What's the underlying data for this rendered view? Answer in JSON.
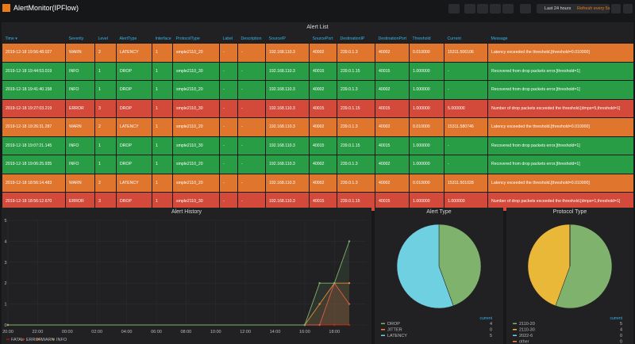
{
  "header": {
    "title": "AlertMonitor(IPFlow)",
    "time_range": "Last 24 hours",
    "refresh": "Refresh every 5s"
  },
  "table": {
    "title": "Alert List",
    "columns": [
      "Time ▾",
      "Severity",
      "Level",
      "AlertType",
      "Interface",
      "ProtocolType",
      "Label",
      "Description",
      "SourceIP",
      "SourcePort",
      "DestinationIP",
      "DestinationPort",
      "Threshold",
      "Current",
      "Message"
    ],
    "severity_colors": {
      "WARN": "#e0752d",
      "INFO": "#299c46",
      "ERROR": "#d44a3a"
    },
    "rows": [
      [
        "2019-12-18 19:56:48.027",
        "WARN",
        "2",
        "LATENCY",
        "1",
        "smple2110_20",
        "-",
        "-",
        "192.168.110.3",
        "40002",
        "239.0.1.3",
        "40002",
        "0.010000",
        "15311.506106",
        "Latency exceeded the threshold.[threshold=0.010000]"
      ],
      [
        "2019-12-18 19:44:53.019",
        "INFO",
        "1",
        "DROP",
        "1",
        "smple2110_30",
        "-",
        "-",
        "192.168.110.3",
        "40015",
        "239.0.1.15",
        "40015",
        "1.000000",
        "-",
        "Recovered from drop packets error.[threshold=1]"
      ],
      [
        "2019-12-18 19:41:40.158",
        "INFO",
        "1",
        "DROP",
        "1",
        "smple2110_20",
        "-",
        "-",
        "192.168.110.3",
        "40002",
        "239.0.1.3",
        "40002",
        "1.000000",
        "-",
        "Recovered from drop packets error.[threshold=1]"
      ],
      [
        "2019-12-18 19:27:03.219",
        "ERROR",
        "3",
        "DROP",
        "1",
        "smple2110_30",
        "-",
        "-",
        "192.168.110.3",
        "40015",
        "239.0.1.15",
        "40015",
        "1.000000",
        "5.000000",
        "Number of drop packets exceeded the threshold.[dmps=5,threshold=1]"
      ],
      [
        "2019-12-18 19:26:31.287",
        "WARN",
        "2",
        "LATENCY",
        "1",
        "smple2110_20",
        "-",
        "-",
        "192.168.110.3",
        "40002",
        "239.0.1.3",
        "40002",
        "0.010000",
        "15311.580746",
        "Latency exceeded the threshold.[threshold=0.010000]"
      ],
      [
        "2019-12-18 19:07:21.145",
        "INFO",
        "1",
        "DROP",
        "1",
        "smple2110_30",
        "-",
        "-",
        "192.168.110.3",
        "40015",
        "239.0.1.15",
        "40015",
        "1.000000",
        "-",
        "Recovered from drop packets error.[threshold=1]"
      ],
      [
        "2019-12-18 19:06:25.935",
        "INFO",
        "1",
        "DROP",
        "1",
        "smple2110_20",
        "-",
        "-",
        "192.168.110.3",
        "40002",
        "239.0.1.3",
        "40002",
        "1.000000",
        "-",
        "Recovered from drop packets error.[threshold=1]"
      ],
      [
        "2019-12-18 18:56:14.483",
        "WARN",
        "2",
        "LATENCY",
        "1",
        "smple2110_20",
        "-",
        "-",
        "192.168.110.3",
        "40002",
        "239.0.1.3",
        "40002",
        "0.010000",
        "15311.501028",
        "Latency exceeded the threshold.[threshold=0.010000]"
      ],
      [
        "2019-12-18 18:56:12.670",
        "ERROR",
        "3",
        "DROP",
        "1",
        "smple2110_30",
        "-",
        "-",
        "192.168.110.3",
        "40015",
        "239.0.1.15",
        "40015",
        "1.000000",
        "1.000000",
        "Number of drop packets exceeded the threshold.[dmps=1,threshold=1]"
      ]
    ]
  },
  "chart_data": [
    {
      "type": "line",
      "title": "Alert History",
      "x": [
        0,
        20,
        21,
        22,
        23
      ],
      "xlim": [
        0,
        23
      ],
      "xticks": [
        {
          "value": 0,
          "label": "20:00"
        },
        {
          "value": 2,
          "label": "22:00"
        },
        {
          "value": 4,
          "label": "00:00"
        },
        {
          "value": 6,
          "label": "02:00"
        },
        {
          "value": 8,
          "label": "04:00"
        },
        {
          "value": 10,
          "label": "06:00"
        },
        {
          "value": 12,
          "label": "08:00"
        },
        {
          "value": 14,
          "label": "10:00"
        },
        {
          "value": 16,
          "label": "12:00"
        },
        {
          "value": 18,
          "label": "14:00"
        },
        {
          "value": 20,
          "label": "16:00"
        },
        {
          "value": 22,
          "label": "18:00"
        }
      ],
      "ylim": [
        0,
        5
      ],
      "yticks": [
        0,
        1,
        2,
        3,
        4,
        5
      ],
      "grid": true,
      "series": [
        {
          "name": "FATAL",
          "color": "#bf1b00",
          "values": [
            0,
            0,
            0,
            0,
            0
          ]
        },
        {
          "name": "ERROR",
          "color": "#e24d42",
          "values": [
            0,
            0,
            0,
            2,
            1
          ]
        },
        {
          "name": "WARN",
          "color": "#ef843c",
          "values": [
            0,
            0,
            1,
            2,
            2
          ]
        },
        {
          "name": "INFO",
          "color": "#7eb26d",
          "values": [
            0,
            0,
            2,
            2,
            4
          ]
        }
      ]
    },
    {
      "type": "pie",
      "title": "Alert Type",
      "legend_header": "current",
      "categories": [
        "DROP",
        "JITTER",
        "LATENCY"
      ],
      "values": [
        4,
        0,
        5
      ],
      "colors": [
        "#7eb26d",
        "#ef843c",
        "#6ed0e0"
      ]
    },
    {
      "type": "pie",
      "title": "Protocol Type",
      "legend_header": "current",
      "categories": [
        "2110-20",
        "2110-30",
        "2022-6",
        "other"
      ],
      "values": [
        5,
        4,
        0,
        0
      ],
      "colors": [
        "#7eb26d",
        "#eab839",
        "#6ed0e0",
        "#ef843c"
      ]
    }
  ]
}
